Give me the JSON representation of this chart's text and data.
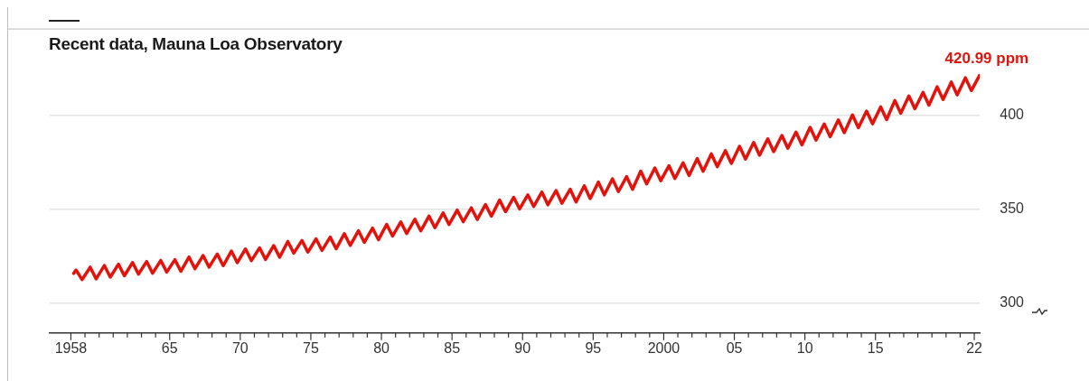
{
  "chart_data": {
    "type": "line",
    "title": "Recent data, Mauna Loa Observatory",
    "color": "#e3120b",
    "marker": "none",
    "line_style": "solid",
    "grid": "y",
    "x": [
      1958.2,
      1958.37,
      1958.79,
      1959.37,
      1959.79,
      1960.37,
      1960.79,
      1961.37,
      1961.79,
      1962.37,
      1962.79,
      1963.37,
      1963.79,
      1964.37,
      1964.79,
      1965.37,
      1965.79,
      1966.37,
      1966.79,
      1967.37,
      1967.79,
      1968.37,
      1968.79,
      1969.37,
      1969.79,
      1970.37,
      1970.79,
      1971.37,
      1971.79,
      1972.37,
      1972.79,
      1973.37,
      1973.79,
      1974.37,
      1974.79,
      1975.37,
      1975.79,
      1976.37,
      1976.79,
      1977.37,
      1977.79,
      1978.37,
      1978.79,
      1979.37,
      1979.79,
      1980.37,
      1980.79,
      1981.37,
      1981.79,
      1982.37,
      1982.79,
      1983.37,
      1983.79,
      1984.37,
      1984.79,
      1985.37,
      1985.79,
      1986.37,
      1986.79,
      1987.37,
      1987.79,
      1988.37,
      1988.79,
      1989.37,
      1989.79,
      1990.37,
      1990.79,
      1991.37,
      1991.79,
      1992.37,
      1992.79,
      1993.37,
      1993.79,
      1994.37,
      1994.79,
      1995.37,
      1995.79,
      1996.37,
      1996.79,
      1997.37,
      1997.79,
      1998.37,
      1998.79,
      1999.37,
      1999.79,
      2000.37,
      2000.79,
      2001.37,
      2001.79,
      2002.37,
      2002.79,
      2003.37,
      2003.79,
      2004.37,
      2004.79,
      2005.37,
      2005.79,
      2006.37,
      2006.79,
      2007.37,
      2007.79,
      2008.37,
      2008.79,
      2009.37,
      2009.79,
      2010.37,
      2010.79,
      2011.37,
      2011.79,
      2012.37,
      2012.79,
      2013.37,
      2013.79,
      2014.37,
      2014.79,
      2015.37,
      2015.79,
      2016.37,
      2016.79,
      2017.37,
      2017.79,
      2018.37,
      2018.79,
      2019.37,
      2019.79,
      2020.37,
      2020.79,
      2021.37,
      2021.79,
      2022.37
    ],
    "values": [
      315.7,
      317.5,
      312.4,
      319.0,
      312.8,
      319.9,
      313.7,
      320.6,
      314.4,
      321.5,
      315.3,
      322.0,
      315.8,
      322.6,
      316.4,
      323.0,
      316.8,
      324.4,
      318.2,
      325.2,
      319.0,
      326.0,
      319.8,
      327.6,
      321.4,
      328.7,
      322.5,
      329.3,
      323.1,
      330.5,
      324.3,
      332.7,
      326.5,
      333.2,
      327.0,
      334.1,
      327.9,
      335.0,
      328.8,
      336.8,
      330.6,
      338.4,
      332.2,
      339.8,
      333.6,
      341.8,
      335.6,
      343.1,
      336.9,
      344.5,
      338.3,
      346.2,
      340.0,
      347.9,
      341.7,
      349.4,
      343.2,
      350.6,
      344.4,
      352.3,
      346.1,
      354.7,
      348.5,
      356.2,
      350.0,
      357.5,
      351.3,
      359.0,
      352.2,
      359.8,
      353.0,
      360.5,
      353.7,
      362.3,
      355.5,
      364.3,
      357.5,
      366.0,
      359.2,
      367.2,
      360.4,
      370.1,
      363.3,
      371.8,
      365.0,
      373.0,
      366.2,
      374.6,
      367.8,
      376.8,
      370.0,
      379.3,
      372.5,
      381.0,
      374.2,
      383.3,
      376.5,
      385.4,
      378.6,
      387.3,
      380.5,
      389.1,
      382.3,
      390.9,
      384.1,
      393.4,
      386.6,
      395.2,
      388.4,
      397.4,
      390.6,
      400.0,
      393.2,
      402.1,
      395.3,
      404.3,
      397.5,
      407.7,
      400.9,
      410.1,
      403.3,
      412.0,
      405.2,
      415.0,
      408.2,
      417.5,
      410.7,
      419.8,
      413.0,
      420.99
    ],
    "xlim": [
      1956.5,
      2022.4
    ],
    "ylim": [
      284,
      446
    ],
    "yticks": [
      300,
      350,
      400
    ],
    "xticks": [
      {
        "value": 1958,
        "label": "1958"
      },
      {
        "value": 1959,
        "label": null
      },
      {
        "value": 1960,
        "label": null
      },
      {
        "value": 1961,
        "label": null
      },
      {
        "value": 1962,
        "label": null
      },
      {
        "value": 1963,
        "label": null
      },
      {
        "value": 1964,
        "label": null
      },
      {
        "value": 1965,
        "label": "65"
      },
      {
        "value": 1966,
        "label": null
      },
      {
        "value": 1967,
        "label": null
      },
      {
        "value": 1968,
        "label": null
      },
      {
        "value": 1969,
        "label": null
      },
      {
        "value": 1970,
        "label": "70"
      },
      {
        "value": 1971,
        "label": null
      },
      {
        "value": 1972,
        "label": null
      },
      {
        "value": 1973,
        "label": null
      },
      {
        "value": 1974,
        "label": null
      },
      {
        "value": 1975,
        "label": "75"
      },
      {
        "value": 1976,
        "label": null
      },
      {
        "value": 1977,
        "label": null
      },
      {
        "value": 1978,
        "label": null
      },
      {
        "value": 1979,
        "label": null
      },
      {
        "value": 1980,
        "label": "80"
      },
      {
        "value": 1981,
        "label": null
      },
      {
        "value": 1982,
        "label": null
      },
      {
        "value": 1983,
        "label": null
      },
      {
        "value": 1984,
        "label": null
      },
      {
        "value": 1985,
        "label": "85"
      },
      {
        "value": 1986,
        "label": null
      },
      {
        "value": 1987,
        "label": null
      },
      {
        "value": 1988,
        "label": null
      },
      {
        "value": 1989,
        "label": null
      },
      {
        "value": 1990,
        "label": "90"
      },
      {
        "value": 1991,
        "label": null
      },
      {
        "value": 1992,
        "label": null
      },
      {
        "value": 1993,
        "label": null
      },
      {
        "value": 1994,
        "label": null
      },
      {
        "value": 1995,
        "label": "95"
      },
      {
        "value": 1996,
        "label": null
      },
      {
        "value": 1997,
        "label": null
      },
      {
        "value": 1998,
        "label": null
      },
      {
        "value": 1999,
        "label": null
      },
      {
        "value": 2000,
        "label": "2000"
      },
      {
        "value": 2001,
        "label": null
      },
      {
        "value": 2002,
        "label": null
      },
      {
        "value": 2003,
        "label": null
      },
      {
        "value": 2004,
        "label": null
      },
      {
        "value": 2005,
        "label": "05"
      },
      {
        "value": 2006,
        "label": null
      },
      {
        "value": 2007,
        "label": null
      },
      {
        "value": 2008,
        "label": null
      },
      {
        "value": 2009,
        "label": null
      },
      {
        "value": 2010,
        "label": "10"
      },
      {
        "value": 2011,
        "label": null
      },
      {
        "value": 2012,
        "label": null
      },
      {
        "value": 2013,
        "label": null
      },
      {
        "value": 2014,
        "label": null
      },
      {
        "value": 2015,
        "label": "15"
      },
      {
        "value": 2016,
        "label": null
      },
      {
        "value": 2017,
        "label": null
      },
      {
        "value": 2018,
        "label": null
      },
      {
        "value": 2019,
        "label": null
      },
      {
        "value": 2020,
        "label": null
      },
      {
        "value": 2021,
        "label": null
      },
      {
        "value": 2022,
        "label": "22"
      }
    ],
    "annotations": [
      {
        "text": "420.99 ppm",
        "x": 2022.37,
        "y": 420.99
      }
    ]
  }
}
